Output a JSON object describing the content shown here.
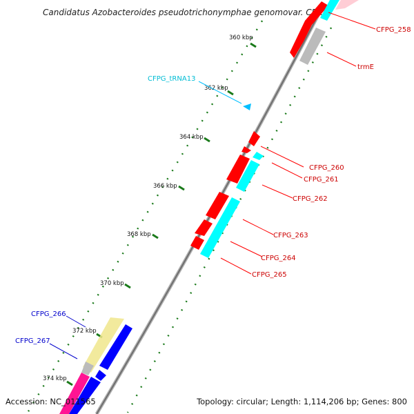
{
  "title": "Candidatus Azobacteroides pseudotrichonymphae genomovar. CFP...",
  "footer": {
    "accession": "Accession: NC_011565",
    "summary": "Topology: circular; Length: 1,114,206 bp; Genes: 800"
  },
  "ticks": [
    "360 kbp",
    "362 kbp",
    "364 kbp",
    "366 kbp",
    "368 kbp",
    "370 kbp",
    "372 kbp",
    "374 kbp"
  ],
  "genes": {
    "cfpg258": "CFPG_258",
    "trmE": "trmE",
    "trna13": "CFPG_tRNA13",
    "cfpg260": "CFPG_260",
    "cfpg261": "CFPG_261",
    "cfpg262": "CFPG_262",
    "cfpg263": "CFPG_263",
    "cfpg264": "CFPG_264",
    "cfpg265": "CFPG_265",
    "cfpg266": "CFPG_266",
    "cfpg267": "CFPG_267"
  },
  "colors": {
    "red": "#ff0000",
    "cyan": "#00ffff",
    "blue": "#0000ff",
    "navy": "#1a1ad0",
    "tick": "#1a7a1a",
    "backbone": "#888888",
    "grey": "#bbbbbb",
    "khaki": "#f0e68c",
    "magenta": "#ff1493"
  }
}
